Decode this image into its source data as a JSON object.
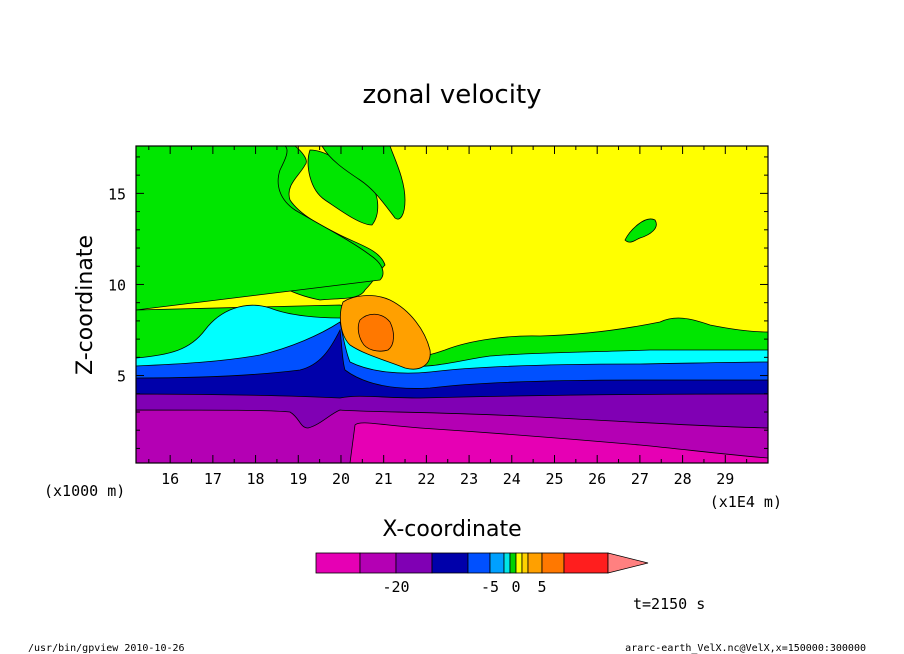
{
  "chart_data": {
    "type": "heatmap",
    "title": "zonal velocity",
    "xlabel": "X-coordinate",
    "ylabel": "Z-coordinate",
    "x_unit_label": "(x1E4 m)",
    "y_unit_label": "(x1000 m)",
    "xlim": [
      15.2,
      30.0
    ],
    "ylim": [
      0.2,
      17.6
    ],
    "x_ticks": [
      16,
      17,
      18,
      19,
      20,
      21,
      22,
      23,
      24,
      25,
      26,
      27,
      28,
      29
    ],
    "y_ticks": [
      5,
      10,
      15
    ],
    "colorbar": {
      "levels": [
        -30,
        -25,
        -20,
        -15,
        -10,
        -5,
        -2,
        -1,
        0,
        1,
        2,
        5,
        10,
        20
      ],
      "tick_labels": [
        "-20",
        "-5",
        "0",
        "5"
      ],
      "tick_values": [
        -20,
        -5,
        0,
        5
      ],
      "extend": "max",
      "colors": [
        "#e600b4",
        "#b400b4",
        "#8000b4",
        "#0000aa",
        "#0050ff",
        "#00a0ff",
        "#00e6e6",
        "#00d200",
        "#ffff00",
        "#ffd200",
        "#ffa000",
        "#ff7800",
        "#ff1e1e",
        "#ff8080"
      ]
    },
    "regions_note_colors": {
      "magenta": "#e600b4",
      "purple_dark": "#b400b4",
      "violet": "#8000b4",
      "navy": "#0000aa",
      "blue": "#0050ff",
      "cyan": "#00ffff",
      "green": "#00e600",
      "yellow": "#ffff00",
      "orange": "#ffa000",
      "dark_orange": "#ff7800"
    }
  },
  "annotations": {
    "time": "t=2150 s",
    "footer_left": "/usr/bin/gpview   2010-10-26",
    "footer_right": "ararc-earth_VelX.nc@VelX,x=150000:300000"
  }
}
